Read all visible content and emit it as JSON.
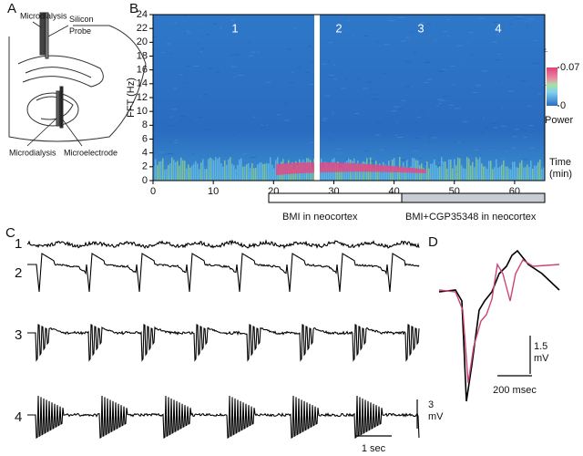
{
  "panels": {
    "a": {
      "label": "A",
      "annotations": [
        "Microdialysis",
        "Silicon Probe",
        "Microdialysis",
        "Microelectrode"
      ]
    },
    "c": {
      "label": "C",
      "traces": [
        "1",
        "2",
        "3",
        "4"
      ],
      "scale_y": "3 mV",
      "scale_x": "1 sec"
    },
    "d": {
      "label": "D",
      "scale_y": "1.5 mV",
      "scale_x": "200 msec"
    }
  },
  "chart_data": {
    "type": "heatmap",
    "panel_label": "B",
    "xlabel": "Time (min)",
    "ylabel": "FFT (Hz)",
    "xlim": [
      0,
      65
    ],
    "ylim": [
      0,
      24
    ],
    "xticks": [
      0,
      10,
      20,
      30,
      40,
      50,
      60
    ],
    "yticks": [
      0,
      2,
      4,
      6,
      8,
      10,
      12,
      14,
      16,
      18,
      20,
      22,
      24
    ],
    "epochs": [
      "1",
      "2",
      "3",
      "4"
    ],
    "colorbar": {
      "label": "Power",
      "ticks": [
        0.07,
        0
      ]
    },
    "treatments": [
      "BMI in neocortex",
      "BMI+CGP35348 in neocortex"
    ]
  }
}
